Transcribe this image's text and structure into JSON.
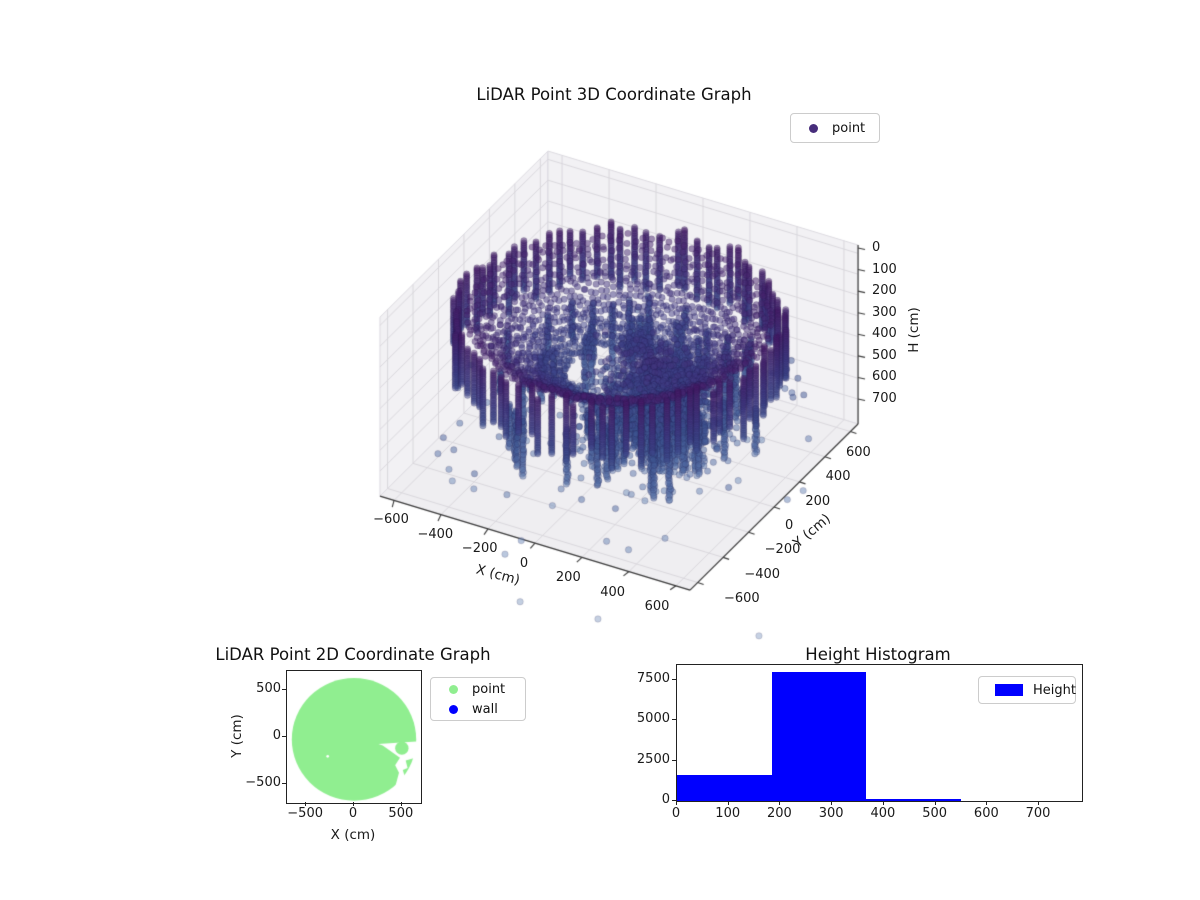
{
  "figure": {
    "background": "#ffffff"
  },
  "chart_data": [
    {
      "type": "scatter",
      "projection": "3d",
      "title": "LiDAR Point 3D Coordinate Graph",
      "legend": [
        {
          "label": "point",
          "color": "#472d7b"
        }
      ],
      "xlabel": "X (cm)",
      "ylabel": "Y (cm)",
      "zlabel": "H (cm)",
      "xlim": [
        -660,
        660
      ],
      "ylim": [
        -660,
        660
      ],
      "hlim": [
        -40,
        820
      ],
      "h_axis_inverted": true,
      "xticks": [
        -600,
        -400,
        -200,
        0,
        200,
        400,
        600
      ],
      "yticks": [
        -600,
        -400,
        -200,
        0,
        200,
        400,
        600
      ],
      "hticks": [
        0,
        100,
        200,
        300,
        400,
        500,
        600,
        700
      ],
      "point_alpha": 0.5,
      "point_radius_px": 3.2,
      "color_by_height_stops": [
        [
          0,
          "#440154"
        ],
        [
          150,
          "#46246e"
        ],
        [
          300,
          "#3f3b84"
        ],
        [
          450,
          "#3c5390"
        ],
        [
          600,
          "#4c66a0"
        ],
        [
          800,
          "#6f8cba"
        ],
        [
          1400,
          "#8fa5c7"
        ]
      ],
      "cloud": {
        "seed": 42,
        "rim": {
          "spokes": 80,
          "radius": [
            595,
            635
          ],
          "h_top": [
            100,
            150
          ],
          "h_bottom": [
            340,
            430
          ],
          "h_step": 8.5
        },
        "fan": {
          "rings": 17,
          "r_outer": 565,
          "r_inner": 205,
          "theta_step_deg": 3.2,
          "h_base": 110,
          "h_slope": 0.72,
          "h_noise": 30
        },
        "core": {
          "count": 2400,
          "center_xy": [
            170,
            -40
          ],
          "sigma_r": 160,
          "r_clip": 320,
          "h_mean": 480,
          "h_sigma": 110,
          "h_clip": [
            260,
            720
          ]
        },
        "knots": [
          {
            "center": [
              200,
              20
            ],
            "sigma": 45,
            "h": [
              320,
              400
            ],
            "count": 200
          },
          {
            "center": [
              0,
              150
            ],
            "sigma": 35,
            "h": [
              330,
              390
            ],
            "count": 120
          }
        ],
        "stalactites": {
          "count": 75,
          "r_range": [
            260,
            560
          ],
          "h_start": [
            390,
            430
          ],
          "h_end": [
            480,
            730
          ],
          "h_step": 8
        },
        "outliers": {
          "count": 70,
          "r_max": 750,
          "h_range": [
            480,
            800
          ]
        },
        "deep_outliers": {
          "count": 8,
          "r_max": 700,
          "h_range": [
            700,
            950
          ]
        },
        "edge_outliers": {
          "count": 10,
          "theta_deg": [
            20,
            65
          ],
          "r_range": [
            620,
            720
          ],
          "h_range": [
            450,
            720
          ]
        },
        "stray_points": [
          [
            -150,
            -500,
            1250
          ],
          [
            100,
            -350,
            1338
          ],
          [
            650,
            -100,
            1382
          ]
        ]
      }
    },
    {
      "type": "scatter",
      "title": "LiDAR Point 2D Coordinate Graph",
      "xlabel": "X (cm)",
      "ylabel": "Y (cm)",
      "xlim": [
        -700,
        700
      ],
      "ylim": [
        -700,
        700
      ],
      "xticks": [
        -500,
        0,
        500
      ],
      "yticks": [
        -500,
        0,
        500
      ],
      "legend": [
        {
          "label": "point",
          "color": "#90ee90"
        },
        {
          "label": "wall",
          "color": "#0000ff"
        }
      ],
      "blob": {
        "color": "#90ee90",
        "center": [
          0,
          -25
        ],
        "radius": 650,
        "white_cutout_polygon": [
          [
            255,
            -75
          ],
          [
            650,
            -48
          ],
          [
            658,
            -215
          ],
          [
            540,
            -250
          ],
          [
            560,
            -330
          ],
          [
            510,
            -350
          ],
          [
            545,
            -470
          ],
          [
            520,
            -545
          ],
          [
            430,
            -530
          ],
          [
            470,
            -380
          ],
          [
            430,
            -300
          ],
          [
            480,
            -220
          ],
          [
            300,
            -90
          ]
        ],
        "inner_green_circle": {
          "center": [
            500,
            -118
          ],
          "radius": 70
        },
        "small_white_dot": {
          "center": [
            -275,
            -205
          ],
          "radius": 14
        }
      }
    },
    {
      "type": "bar",
      "title": "Height Histogram",
      "legend": [
        {
          "label": "Height",
          "color": "#0000ff"
        }
      ],
      "bar_color": "#0000ff",
      "bin_edges": [
        0,
        183,
        366,
        549,
        732
      ],
      "counts": [
        1600,
        8000,
        120,
        15
      ],
      "xlim": [
        0,
        783
      ],
      "ylim": [
        0,
        8430
      ],
      "xticks": [
        0,
        100,
        200,
        300,
        400,
        500,
        600,
        700
      ],
      "yticks": [
        0,
        2500,
        5000,
        7500
      ]
    }
  ]
}
